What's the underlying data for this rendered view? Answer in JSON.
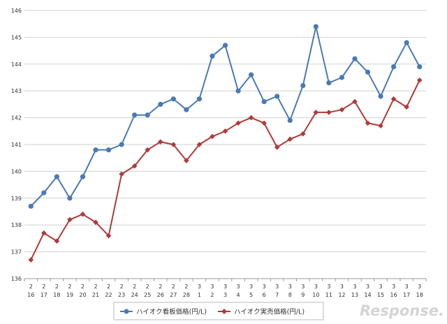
{
  "chart_data": {
    "type": "line",
    "categories": [
      [
        "2",
        "16"
      ],
      [
        "2",
        "17"
      ],
      [
        "2",
        "18"
      ],
      [
        "2",
        "19"
      ],
      [
        "2",
        "20"
      ],
      [
        "2",
        "21"
      ],
      [
        "2",
        "22"
      ],
      [
        "2",
        "23"
      ],
      [
        "2",
        "24"
      ],
      [
        "2",
        "25"
      ],
      [
        "2",
        "26"
      ],
      [
        "2",
        "27"
      ],
      [
        "2",
        "28"
      ],
      [
        "3",
        "1"
      ],
      [
        "3",
        "2"
      ],
      [
        "3",
        "3"
      ],
      [
        "3",
        "4"
      ],
      [
        "3",
        "5"
      ],
      [
        "3",
        "6"
      ],
      [
        "3",
        "7"
      ],
      [
        "3",
        "8"
      ],
      [
        "3",
        "9"
      ],
      [
        "3",
        "10"
      ],
      [
        "3",
        "11"
      ],
      [
        "3",
        "12"
      ],
      [
        "3",
        "13"
      ],
      [
        "3",
        "14"
      ],
      [
        "3",
        "15"
      ],
      [
        "3",
        "16"
      ],
      [
        "3",
        "17"
      ],
      [
        "3",
        "18"
      ]
    ],
    "series": [
      {
        "name": "ハイオク看板価格(円/L)",
        "color": "#4a7ab5",
        "marker": "circle",
        "values": [
          138.7,
          139.2,
          139.8,
          139.0,
          139.8,
          140.8,
          140.8,
          141.0,
          142.1,
          142.1,
          142.5,
          142.7,
          142.3,
          142.7,
          144.3,
          144.7,
          143.0,
          143.6,
          142.6,
          142.8,
          141.9,
          143.2,
          145.4,
          143.3,
          143.5,
          144.2,
          143.7,
          142.8,
          143.9,
          144.8,
          143.9
        ]
      },
      {
        "name": "ハイオク実売価格(円/L)",
        "color": "#b03a3a",
        "marker": "diamond",
        "values": [
          136.7,
          137.7,
          137.4,
          138.2,
          138.4,
          138.1,
          137.6,
          139.9,
          140.2,
          140.8,
          141.1,
          141.0,
          140.4,
          141.0,
          141.3,
          141.5,
          141.8,
          142.0,
          141.8,
          140.9,
          141.2,
          141.4,
          142.2,
          142.2,
          142.3,
          142.6,
          141.8,
          141.7,
          142.7,
          142.4,
          143.4
        ]
      }
    ],
    "ylim": [
      136,
      146
    ],
    "yticks": [
      136,
      137,
      138,
      139,
      140,
      141,
      142,
      143,
      144,
      145,
      146
    ],
    "grid": true,
    "legend": "bottom"
  },
  "watermark": "Response."
}
